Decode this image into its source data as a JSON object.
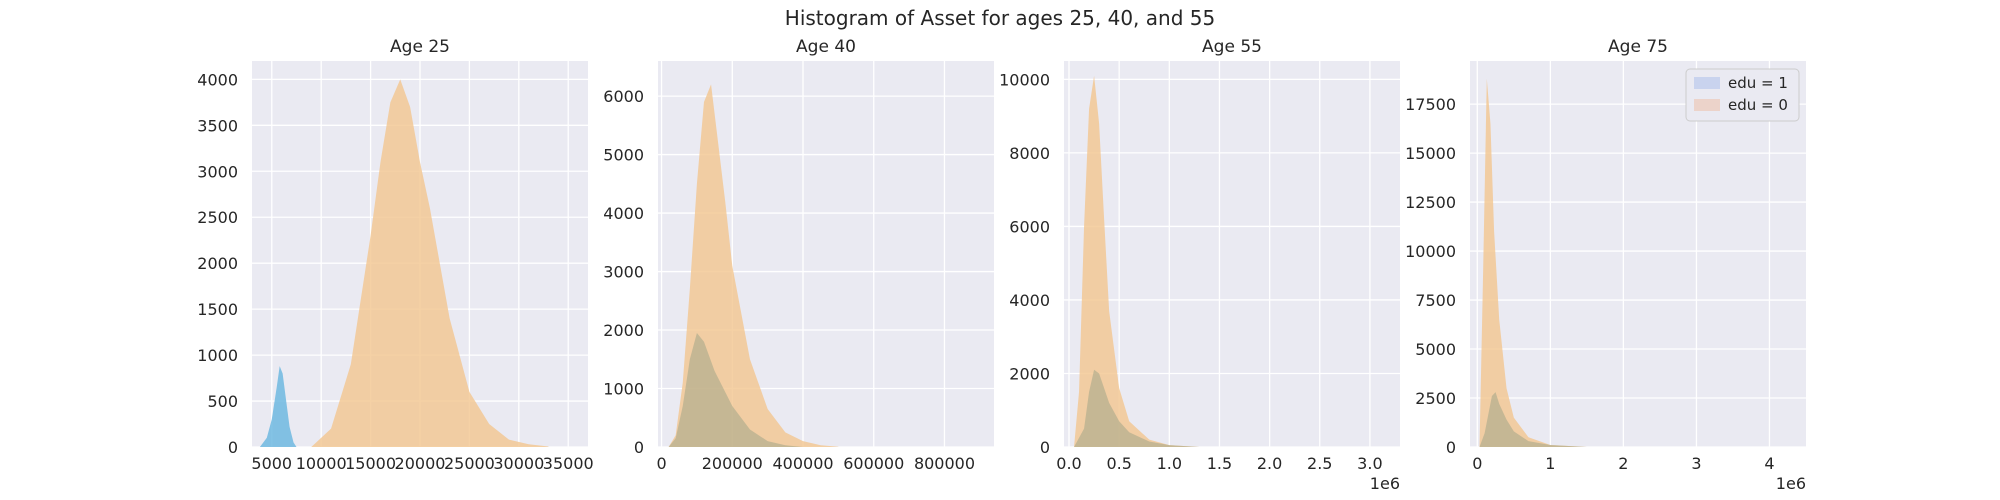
{
  "figure": {
    "title": "Histogram of Asset for ages 25, 40, and 55"
  },
  "colors": {
    "edu1": "#6fb8e0",
    "edu0": "#f2c68e",
    "panel": "#eaeaf2"
  },
  "legend": {
    "location": "upper right",
    "entries": [
      "edu = 1",
      "edu = 0"
    ]
  },
  "chart_data": [
    {
      "type": "area",
      "title": "Age 25",
      "xlim": [
        3000,
        37000
      ],
      "ylim": [
        0,
        4200
      ],
      "x_ticks": [
        5000,
        10000,
        15000,
        20000,
        25000,
        30000,
        35000
      ],
      "x_tick_labels": [
        "5000",
        "10000",
        "15000",
        "20000",
        "25000",
        "30000",
        "35000"
      ],
      "y_ticks": [
        0,
        500,
        1000,
        1500,
        2000,
        2500,
        3000,
        3500,
        4000
      ],
      "offset_text": "",
      "series": [
        {
          "name": "edu = 0",
          "color": "#f2c68e",
          "opacity": 0.8,
          "x": [
            9000,
            11000,
            13000,
            15000,
            16000,
            17000,
            18000,
            19000,
            20000,
            21000,
            23000,
            25000,
            27000,
            29000,
            31000,
            33000
          ],
          "y": [
            0,
            200,
            900,
            2300,
            3100,
            3750,
            4000,
            3700,
            3100,
            2600,
            1400,
            600,
            250,
            80,
            30,
            5
          ]
        },
        {
          "name": "edu = 1",
          "color": "#6fb8e0",
          "opacity": 0.85,
          "x": [
            3800,
            4500,
            5000,
            5500,
            5800,
            6100,
            6400,
            6800,
            7200,
            7500
          ],
          "y": [
            0,
            100,
            300,
            650,
            880,
            800,
            550,
            220,
            50,
            0
          ]
        }
      ]
    },
    {
      "type": "area",
      "title": "Age 40",
      "xlim": [
        -10000,
        940000
      ],
      "ylim": [
        0,
        6600
      ],
      "x_ticks": [
        0,
        200000,
        400000,
        600000,
        800000
      ],
      "x_tick_labels": [
        "0",
        "200000",
        "400000",
        "600000",
        "800000"
      ],
      "y_ticks": [
        0,
        1000,
        2000,
        3000,
        4000,
        5000,
        6000
      ],
      "offset_text": "",
      "series": [
        {
          "name": "edu = 0",
          "color": "#f2c68e",
          "opacity": 0.8,
          "x": [
            20000,
            40000,
            60000,
            80000,
            100000,
            120000,
            140000,
            160000,
            180000,
            200000,
            250000,
            300000,
            350000,
            400000,
            450000,
            500000
          ],
          "y": [
            0,
            200,
            1100,
            2700,
            4500,
            5900,
            6200,
            5200,
            4200,
            3100,
            1500,
            650,
            250,
            100,
            30,
            5
          ]
        },
        {
          "name": "edu = 1",
          "color": "#a9a98a",
          "opacity": 0.6,
          "x": [
            20000,
            40000,
            60000,
            80000,
            100000,
            120000,
            150000,
            200000,
            250000,
            300000,
            350000,
            400000
          ],
          "y": [
            0,
            150,
            700,
            1500,
            1950,
            1800,
            1300,
            700,
            300,
            100,
            30,
            0
          ]
        }
      ]
    },
    {
      "type": "area",
      "title": "Age 55",
      "xlim": [
        -50000,
        3300000
      ],
      "ylim": [
        0,
        10500
      ],
      "x_ticks": [
        0,
        500000,
        1000000,
        1500000,
        2000000,
        2500000,
        3000000
      ],
      "x_tick_labels": [
        "0.0",
        "0.5",
        "1.0",
        "1.5",
        "2.0",
        "2.5",
        "3.0"
      ],
      "y_ticks": [
        0,
        2000,
        4000,
        6000,
        8000,
        10000
      ],
      "offset_text": "1e6",
      "series": [
        {
          "name": "edu = 0",
          "color": "#f2c68e",
          "opacity": 0.8,
          "x": [
            50000,
            100000,
            150000,
            200000,
            250000,
            300000,
            350000,
            400000,
            500000,
            600000,
            800000,
            1000000,
            1300000
          ],
          "y": [
            0,
            1500,
            6000,
            9200,
            10100,
            8800,
            6200,
            3700,
            1600,
            700,
            200,
            50,
            0
          ]
        },
        {
          "name": "edu = 1",
          "color": "#a9a98a",
          "opacity": 0.6,
          "x": [
            50000,
            150000,
            200000,
            250000,
            300000,
            350000,
            400000,
            500000,
            600000,
            800000,
            1000000,
            1300000
          ],
          "y": [
            0,
            500,
            1500,
            2100,
            2000,
            1600,
            1200,
            700,
            400,
            150,
            50,
            0
          ]
        }
      ]
    },
    {
      "type": "area",
      "title": "Age 75",
      "xlim": [
        -100000,
        4500000
      ],
      "ylim": [
        0,
        19700
      ],
      "x_ticks": [
        0,
        1000000,
        2000000,
        3000000,
        4000000
      ],
      "x_tick_labels": [
        "0",
        "1",
        "2",
        "3",
        "4"
      ],
      "y_ticks": [
        0,
        2500,
        5000,
        7500,
        10000,
        12500,
        15000,
        17500
      ],
      "offset_text": "1e6",
      "series": [
        {
          "name": "edu = 0",
          "color": "#f2c68e",
          "opacity": 0.8,
          "x": [
            30000,
            80000,
            130000,
            180000,
            230000,
            300000,
            400000,
            500000,
            700000,
            1000000,
            1500000
          ],
          "y": [
            0,
            9000,
            18800,
            16500,
            11000,
            6500,
            3000,
            1500,
            500,
            100,
            0
          ]
        },
        {
          "name": "edu = 1",
          "color": "#a9a98a",
          "opacity": 0.6,
          "x": [
            30000,
            100000,
            200000,
            250000,
            300000,
            400000,
            500000,
            700000,
            1000000,
            1500000
          ],
          "y": [
            0,
            700,
            2600,
            2800,
            2200,
            1400,
            800,
            300,
            100,
            0
          ]
        }
      ]
    }
  ]
}
